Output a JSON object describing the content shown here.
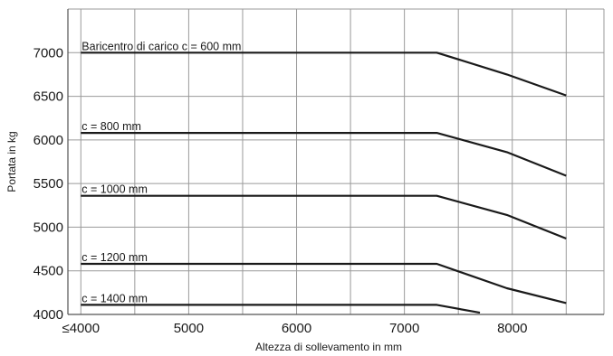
{
  "chart_data": {
    "type": "line",
    "xlabel": "Altezza di sollevamento in mm",
    "ylabel": "Portata in kg",
    "xlim": [
      3880,
      8850
    ],
    "ylim": [
      4000,
      7500
    ],
    "x_ticks": [
      {
        "value": 4000,
        "label": "≤4000"
      },
      {
        "value": 5000,
        "label": "5000"
      },
      {
        "value": 6000,
        "label": "6000"
      },
      {
        "value": 7000,
        "label": "7000"
      },
      {
        "value": 8000,
        "label": "8000"
      }
    ],
    "x_grid": [
      4000,
      4500,
      5000,
      5500,
      6000,
      6500,
      7000,
      7500,
      8000,
      8500
    ],
    "y_ticks": [
      4000,
      4500,
      5000,
      5500,
      6000,
      6500,
      7000
    ],
    "y_grid": [
      4000,
      4500,
      5000,
      5500,
      6000,
      6500,
      7000,
      7500
    ],
    "grid": true,
    "series": [
      {
        "name": "Baricentro di carico c = 600 mm",
        "x": [
          4000,
          7300,
          7950,
          8500
        ],
        "y": [
          7000,
          7000,
          6750,
          6510
        ]
      },
      {
        "name": "c = 800 mm",
        "x": [
          4000,
          7300,
          7950,
          8500
        ],
        "y": [
          6080,
          6080,
          5860,
          5590
        ]
      },
      {
        "name": "c = 1000 mm",
        "x": [
          4000,
          7300,
          7950,
          8500
        ],
        "y": [
          5360,
          5360,
          5140,
          4870
        ]
      },
      {
        "name": "c = 1200 mm",
        "x": [
          4000,
          7300,
          7950,
          8500
        ],
        "y": [
          4580,
          4580,
          4300,
          4130
        ]
      },
      {
        "name": "c = 1400 mm",
        "x": [
          4000,
          7300,
          7700
        ],
        "y": [
          4110,
          4110,
          4020
        ]
      }
    ]
  }
}
